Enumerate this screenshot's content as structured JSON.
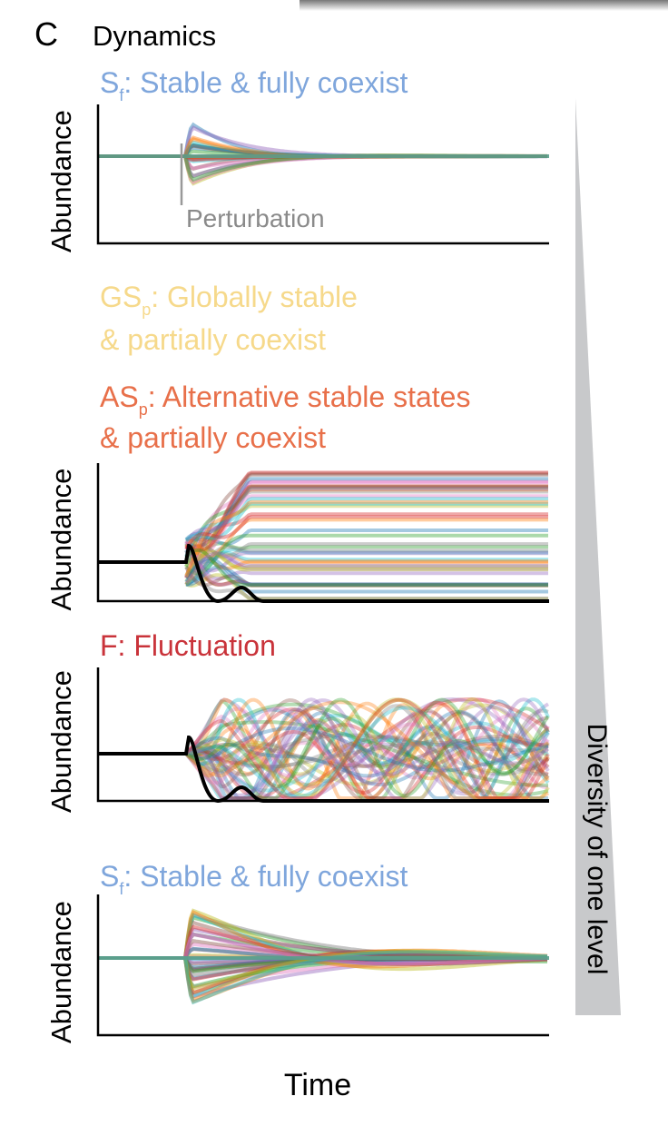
{
  "header": {
    "panel_label": "C",
    "title": "Dynamics"
  },
  "plots": [
    {
      "title_lines": [
        [
          {
            "text": "S"
          },
          {
            "sub": "f"
          },
          {
            "text": ": Stable & fully coexist"
          }
        ]
      ],
      "y_label": "Abundance",
      "annotation": "Perturbation"
    },
    {
      "title_lines": [
        [
          {
            "text": "GS"
          },
          {
            "sub": "p"
          },
          {
            "text": ": Globally stable"
          }
        ],
        [
          {
            "text": "& partially coexist"
          }
        ]
      ]
    },
    {
      "title_lines": [
        [
          {
            "text": "AS"
          },
          {
            "sub": "p"
          },
          {
            "text": ": Alternative stable states"
          }
        ],
        [
          {
            "text": "& partially coexist"
          }
        ]
      ],
      "y_label": "Abundance"
    },
    {
      "title_lines": [
        [
          {
            "text": "F: Fluctuation"
          }
        ]
      ],
      "y_label": "Abundance"
    },
    {
      "title_lines": [
        [
          {
            "text": "S"
          },
          {
            "sub": "f"
          },
          {
            "text": ": Stable & fully coexist"
          }
        ]
      ],
      "y_label": "Abundance"
    }
  ],
  "x_label": "Time",
  "side_label": "Diversity of one level"
}
